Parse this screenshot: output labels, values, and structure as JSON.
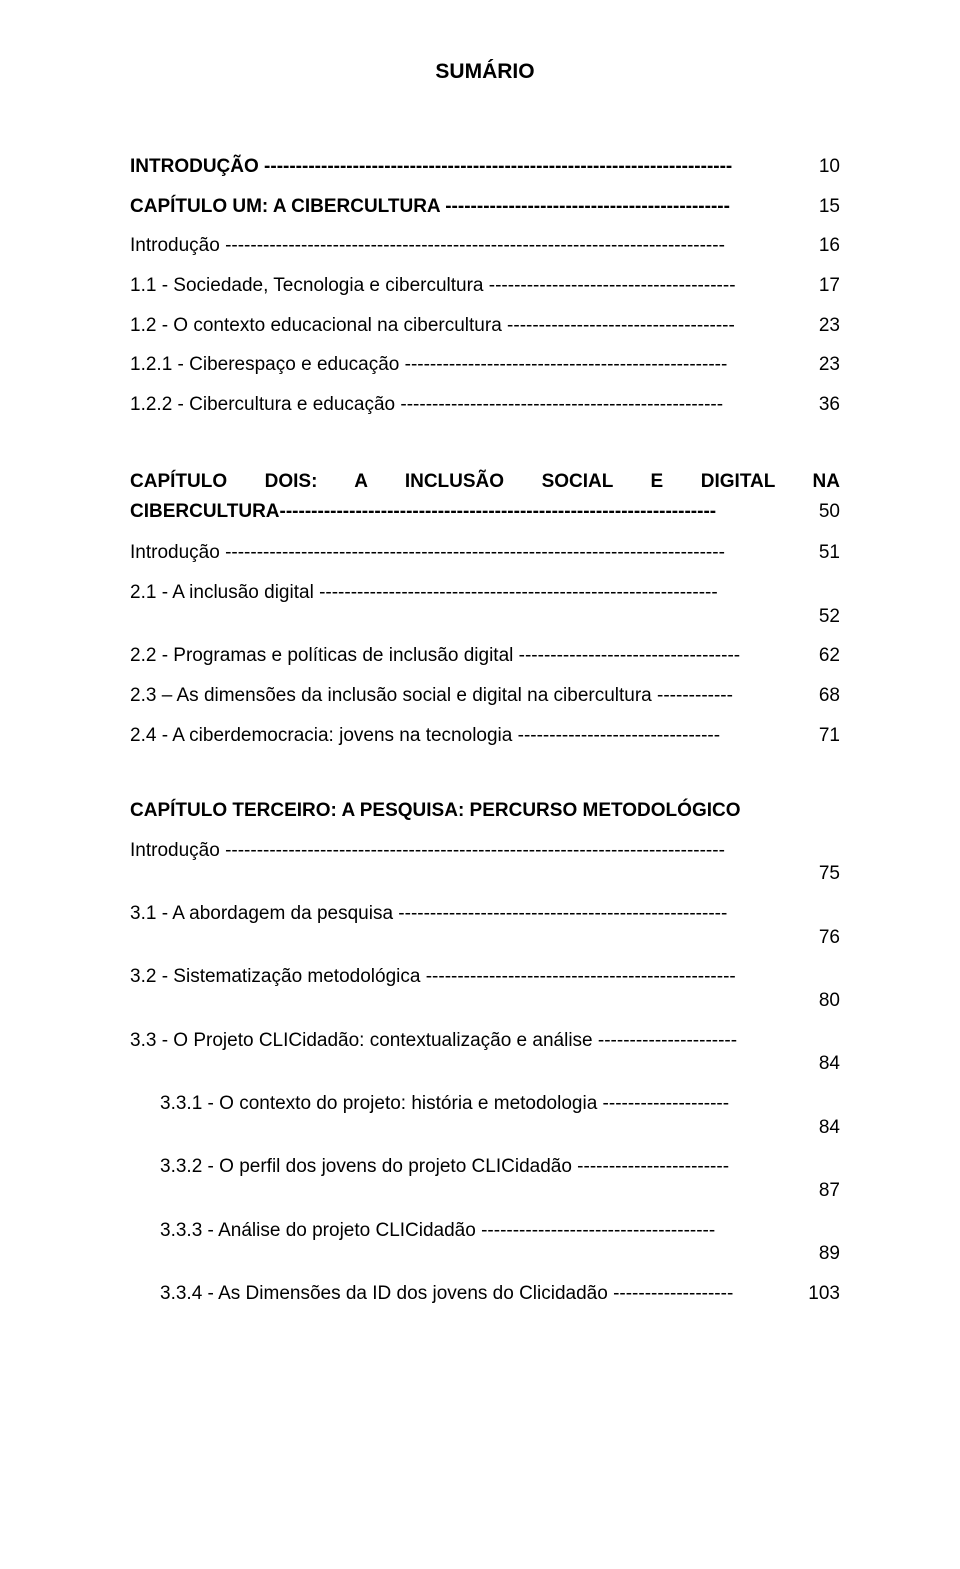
{
  "title": "SUMÁRIO",
  "font": {
    "family": "Arial",
    "title_size_pt": 16,
    "body_size_pt": 14,
    "color": "#000000"
  },
  "background_color": "#ffffff",
  "blocks": [
    {
      "entries": [
        {
          "label": "INTRODUÇÃO --------------------------------------------------------------------------",
          "page": "10",
          "bold": true
        },
        {
          "label": "CAPÍTULO UM: A CIBERCULTURA ---------------------------------------------",
          "page": "15",
          "bold": true
        },
        {
          "label": "Introdução -------------------------------------------------------------------------------",
          "page": "16"
        },
        {
          "label": "1.1 - Sociedade, Tecnologia e cibercultura ---------------------------------------",
          "page": "17"
        },
        {
          "label": "1.2 - O contexto educacional na cibercultura ------------------------------------",
          "page": "23"
        },
        {
          "label": "1.2.1 - Ciberespaço e educação ---------------------------------------------------",
          "page": "23"
        },
        {
          "label": "1.2.2 - Cibercultura e educação ---------------------------------------------------",
          "page": "36"
        }
      ]
    },
    {
      "heading_line1": "CAPÍTULO  DOIS:  A  INCLUSÃO  SOCIAL  E  DIGITAL  NA",
      "heading_line2": "CIBERCULTURA---------------------------------------------------------------------",
      "heading_page": "50",
      "entries": [
        {
          "label": "Introdução -------------------------------------------------------------------------------",
          "page": "51"
        },
        {
          "label": "2.1 - A inclusão digital ---------------------------------------------------------------",
          "page": "52",
          "page_below": true
        },
        {
          "label": "2.2 - Programas e políticas de inclusão digital -----------------------------------",
          "page": "62"
        },
        {
          "label": "2.3 – As dimensões da inclusão social e digital na cibercultura ------------",
          "page": "68"
        },
        {
          "label": "2.4 - A ciberdemocracia: jovens na tecnologia --------------------------------",
          "page": "71"
        }
      ]
    },
    {
      "heading": "CAPÍTULO TERCEIRO: A PESQUISA: PERCURSO METODOLÓGICO",
      "entries": [
        {
          "label": "Introdução -------------------------------------------------------------------------------",
          "page": "75",
          "page_below": true
        },
        {
          "label": "3.1 - A abordagem da pesquisa ----------------------------------------------------",
          "page": "76",
          "page_below": true
        },
        {
          "label": "3.2 - Sistematização metodológica -------------------------------------------------",
          "page": "80",
          "page_below": true
        },
        {
          "label": "3.3 - O Projeto CLICidadão: contextualização e análise ----------------------",
          "page": "84",
          "page_below": true
        },
        {
          "label": "3.3.1 - O contexto do projeto: história e metodologia --------------------",
          "page": "84",
          "indent": 1,
          "page_below": true
        },
        {
          "label": "3.3.2 - O perfil dos jovens do projeto CLICidadão ------------------------",
          "page": "87",
          "indent": 1,
          "page_below": true
        },
        {
          "label": "3.3.3 - Análise do projeto CLICidadão -------------------------------------",
          "page": "89",
          "indent": 1,
          "page_below": true
        },
        {
          "label": "3.3.4 - As Dimensões da ID dos jovens do Clicidadão -------------------",
          "page": "103",
          "indent": 1
        }
      ]
    }
  ]
}
